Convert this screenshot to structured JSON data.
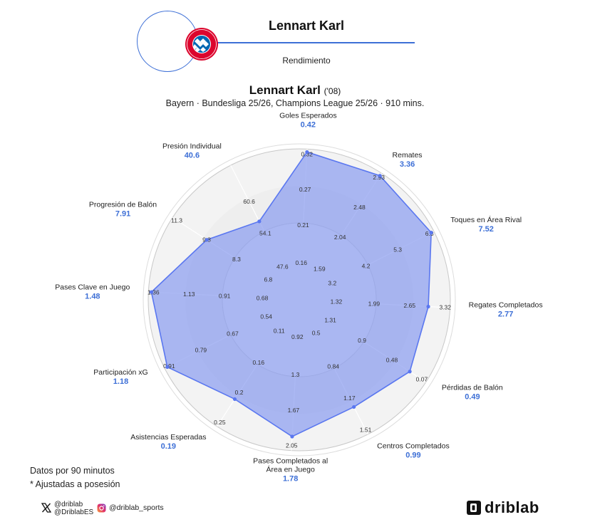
{
  "header": {
    "player_name": "Lennart Karl",
    "subtitle": "Rendimiento",
    "badge_text_top": "FC BAYERN",
    "badge_text_bottom": "MÜNCHEN"
  },
  "title": {
    "name": "Lennart Karl",
    "year": "('08)",
    "subtitle": "Bayern · Bundesliga 25/26, Champions League 25/26 · 910 mins."
  },
  "footer": {
    "note1": "Datos por 90 minutos",
    "note2": "* Ajustadas a posesión",
    "x_handle1": "@driblab",
    "x_handle2": "@DriblabES",
    "instagram": "@driblab_sports",
    "brand": "driblab"
  },
  "colors": {
    "accent": "#3d6fd6",
    "fill": "#8c9ef0",
    "stroke": "#5a77f0"
  },
  "chart_data": {
    "type": "radar",
    "metrics": [
      {
        "label": [
          "Goles Esperados"
        ],
        "value": "0.42",
        "ticks": [
          "0.16",
          "0.21",
          "0.27",
          "0.32"
        ],
        "r": 0.96
      },
      {
        "label": [
          "Remates"
        ],
        "value": "3.36",
        "ticks": [
          "1.59",
          "2.04",
          "2.48",
          "2.93"
        ],
        "r": 0.96
      },
      {
        "label": [
          "Toques en Área Rival"
        ],
        "value": "7.52",
        "ticks": [
          "3.2",
          "4.2",
          "5.3",
          "6.3"
        ],
        "r": 0.96
      },
      {
        "label": [
          "Regates Completados"
        ],
        "value": "2.77",
        "ticks": [
          "1.32",
          "1.99",
          "2.65",
          "3.32"
        ],
        "r": 0.705
      },
      {
        "label": [
          "Pérdidas de Balón"
        ],
        "value": "0.49",
        "ticks": [
          "1.31",
          "0.9",
          "0.48",
          "0.07"
        ],
        "r": 0.74
      },
      {
        "label": [
          "Centros Completados"
        ],
        "value": "0.99",
        "ticks": [
          "0.5",
          "0.84",
          "1.17",
          "1.51"
        ],
        "r": 0.585
      },
      {
        "label": [
          "Pases Completados al",
          "Área en Juego"
        ],
        "value": "1.78",
        "ticks": [
          "0.92",
          "1.3",
          "1.67",
          "2.05"
        ],
        "r": 0.81
      },
      {
        "label": [
          "Asistencias Esperadas"
        ],
        "value": "0.19",
        "ticks": [
          "0.11",
          "0.16",
          "0.2",
          "0.25"
        ],
        "r": 0.56
      },
      {
        "label": [
          "Participación xG"
        ],
        "value": "1.18",
        "ticks": [
          "0.54",
          "0.67",
          "0.79",
          "0.91"
        ],
        "r": 0.96
      },
      {
        "label": [
          "Pases Clave en Juego"
        ],
        "value": "1.48",
        "ticks": [
          "0.68",
          "0.91",
          "1.13",
          "1.36"
        ],
        "r": 0.96
      },
      {
        "label": [
          "Progresión de Balón"
        ],
        "value": "7.91",
        "ticks": [
          "6.8",
          "8.3",
          "9.8",
          "11.3"
        ],
        "r": 0.45
      },
      {
        "label": [
          "Presión Individual"
        ],
        "value": "40.6",
        "ticks": [
          "47.6",
          "54.1",
          "60.6",
          ""
        ],
        "r": 0.15
      }
    ]
  }
}
